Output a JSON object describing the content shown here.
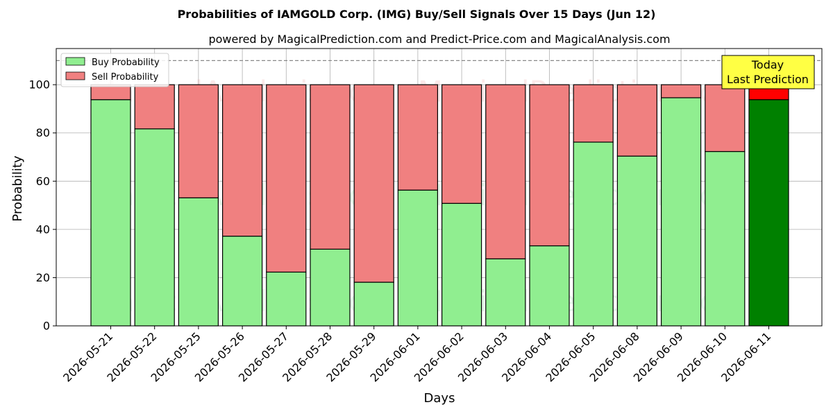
{
  "chart_data": {
    "type": "bar",
    "stacked": true,
    "title": "Probabilities of IAMGOLD Corp. (IMG) Buy/Sell Signals Over 15 Days (Jun 12)",
    "subtitle": "powered by MagicalPrediction.com and Predict-Price.com and MagicalAnalysis.com",
    "xlabel": "Days",
    "ylabel": "Probability",
    "ylim": [
      0,
      115
    ],
    "yticks": [
      0,
      20,
      40,
      60,
      80,
      100
    ],
    "grid": true,
    "legend_placement": "top-left",
    "reference_line": 110,
    "categories": [
      "2026-05-21",
      "2026-05-22",
      "2026-05-25",
      "2026-05-26",
      "2026-05-27",
      "2026-05-28",
      "2026-05-29",
      "2026-06-01",
      "2026-06-02",
      "2026-06-03",
      "2026-06-04",
      "2026-06-05",
      "2026-06-08",
      "2026-06-09",
      "2026-06-10",
      "2026-06-11"
    ],
    "series": [
      {
        "name": "Buy Probability",
        "color": "#90ee90",
        "highlight_color": "#008000",
        "values": [
          93.8,
          81.7,
          53.1,
          37.2,
          22.3,
          31.8,
          18.1,
          56.3,
          50.8,
          27.8,
          33.2,
          76.2,
          70.4,
          94.6,
          72.3,
          93.8
        ]
      },
      {
        "name": "Sell Probability",
        "color": "#f08080",
        "highlight_color": "#ff0000",
        "values": [
          6.2,
          18.3,
          46.9,
          62.8,
          77.7,
          68.2,
          81.9,
          43.7,
          49.2,
          72.2,
          66.8,
          23.8,
          29.6,
          5.4,
          27.7,
          6.2
        ]
      }
    ],
    "highlight_index": 15,
    "annotation": {
      "line1": "Today",
      "line2": "Last Prediction",
      "bg_color": "#ffff44"
    },
    "watermarks": [
      "MagicalAnalysis.com",
      "MagicalPrediction.com"
    ]
  }
}
